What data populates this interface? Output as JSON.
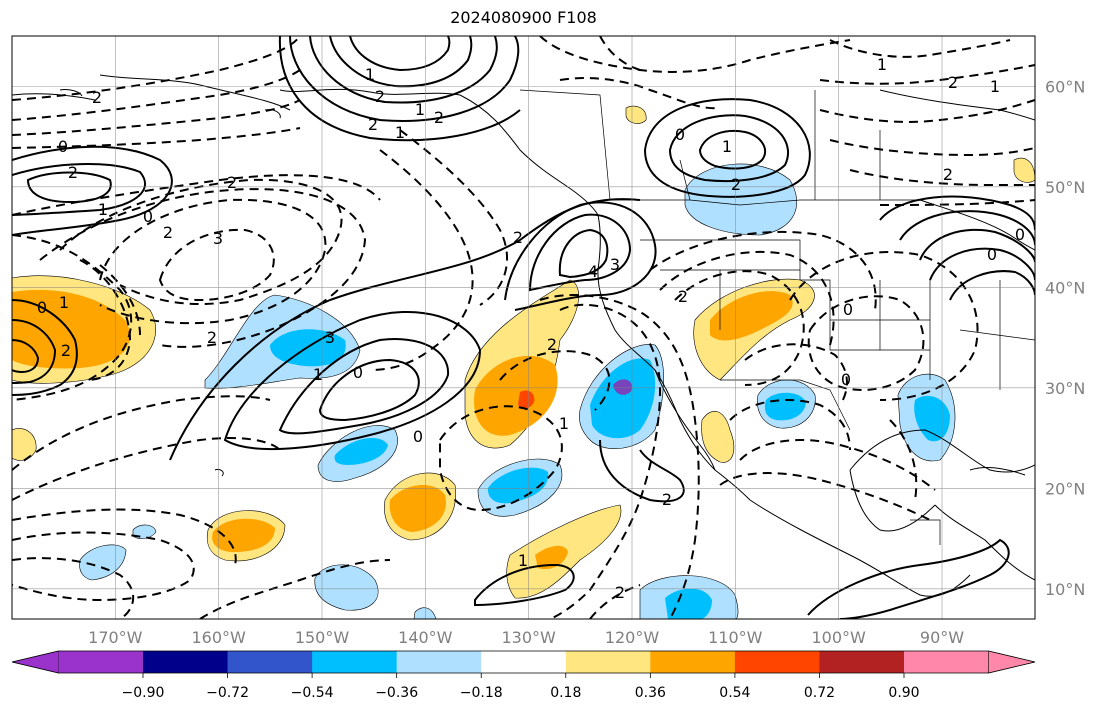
{
  "title": "2024080900 F108",
  "map": {
    "lon_range": [
      -180,
      -81
    ],
    "lat_range": [
      7,
      65
    ],
    "lat_ticks": [
      {
        "value": 60,
        "label": "60°N"
      },
      {
        "value": 50,
        "label": "50°N"
      },
      {
        "value": 40,
        "label": "40°N"
      },
      {
        "value": 30,
        "label": "30°N"
      },
      {
        "value": 20,
        "label": "20°N"
      },
      {
        "value": 10,
        "label": "10°N"
      }
    ],
    "lon_ticks": [
      {
        "value": -170,
        "label": "170°W"
      },
      {
        "value": -160,
        "label": "160°W"
      },
      {
        "value": -150,
        "label": "150°W"
      },
      {
        "value": -140,
        "label": "140°W"
      },
      {
        "value": -130,
        "label": "130°W"
      },
      {
        "value": -120,
        "label": "120°W"
      },
      {
        "value": -110,
        "label": "110°W"
      },
      {
        "value": -100,
        "label": "100°W"
      },
      {
        "value": -90,
        "label": "90°W"
      }
    ],
    "gridlines": true,
    "contour_labels": [
      "2",
      "0",
      "2",
      "1",
      "0",
      "2",
      "3",
      "2",
      "1",
      "0",
      "2",
      "3",
      "0",
      "1",
      "2",
      "1",
      "2",
      "1",
      "2",
      "2",
      "1",
      "2",
      "2",
      "1",
      "4",
      "3",
      "2",
      "1",
      "0",
      "2",
      "1",
      "2",
      "1",
      "2",
      "0",
      "0",
      "0",
      "0",
      "0",
      "1",
      "2",
      "2"
    ]
  },
  "colorbar": {
    "ticks": [
      "−0.90",
      "−0.72",
      "−0.54",
      "−0.36",
      "−0.18",
      "0.18",
      "0.36",
      "0.54",
      "0.72",
      "0.90"
    ],
    "colors": [
      "#9933cc",
      "#00008b",
      "#3355cc",
      "#00bfff",
      "#b0e0ff",
      "#ffffff",
      "#ffe680",
      "#ffa500",
      "#ff4500",
      "#b22222",
      "#ff88aa"
    ],
    "extend": "both"
  }
}
